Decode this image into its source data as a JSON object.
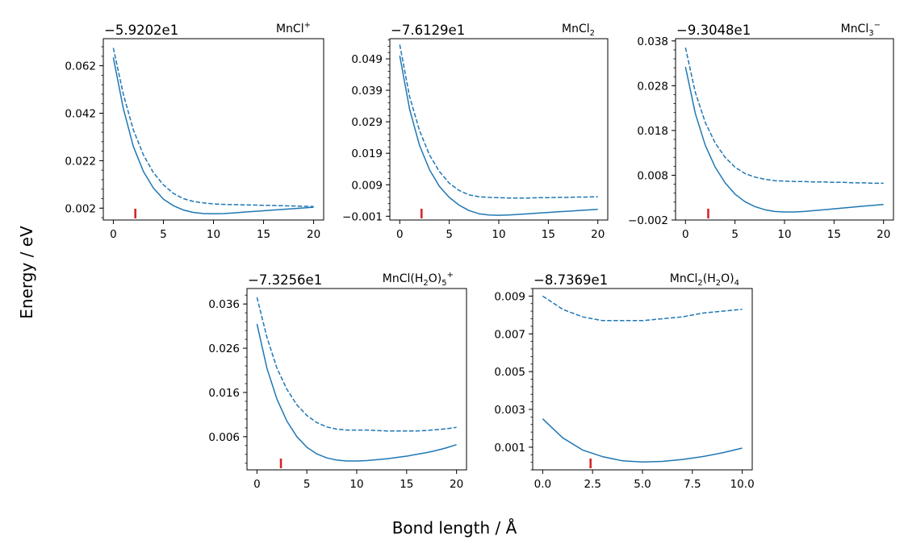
{
  "figure": {
    "ylabel": "Energy / eV",
    "xlabel": "Bond length / Å"
  },
  "colors": {
    "line": "#1f77b4",
    "marker": "#d62728"
  },
  "chart_data": [
    {
      "type": "line",
      "title_parts": [
        {
          "t": "MnCl"
        },
        {
          "t": "+",
          "sup": true
        }
      ],
      "offset": "−5.9202e1",
      "xlim": [
        -1,
        21
      ],
      "ylim": [
        -0.003,
        0.0734
      ],
      "xticks": [
        0,
        5,
        10,
        15,
        20
      ],
      "xtick_labels": [
        "0",
        "5",
        "10",
        "15",
        "20"
      ],
      "yticks": [
        0.002,
        0.022,
        0.042,
        0.062
      ],
      "ytick_labels": [
        "0.002",
        "0.022",
        "0.042",
        "0.062"
      ],
      "marker_x": 2.2,
      "series": [
        {
          "style": "solid",
          "x": [
            0,
            1,
            2,
            3,
            4,
            5,
            6,
            7,
            8,
            9,
            10,
            11,
            12,
            13,
            14,
            15,
            16,
            17,
            18,
            19,
            20
          ],
          "y": [
            0.0655,
            0.044,
            0.028,
            0.0175,
            0.0105,
            0.0058,
            0.003,
            0.0012,
            0.0002,
            -0.0003,
            -0.0004,
            -0.0003,
            0.0,
            0.0003,
            0.0006,
            0.0009,
            0.0012,
            0.0015,
            0.0018,
            0.0021,
            0.0024
          ]
        },
        {
          "style": "dashed",
          "x": [
            0,
            1,
            2,
            3,
            4,
            5,
            6,
            7,
            8,
            9,
            10,
            11,
            12,
            13,
            14,
            15,
            16,
            17,
            18,
            19,
            20
          ],
          "y": [
            0.0695,
            0.05,
            0.035,
            0.0245,
            0.017,
            0.0118,
            0.0082,
            0.006,
            0.0048,
            0.0042,
            0.0038,
            0.0036,
            0.0035,
            0.0034,
            0.0033,
            0.0032,
            0.0031,
            0.003,
            0.0029,
            0.0028,
            0.0027
          ]
        }
      ]
    },
    {
      "type": "line",
      "title_parts": [
        {
          "t": "MnCl"
        },
        {
          "t": "2",
          "sub": true
        }
      ],
      "offset": "−7.6129e1",
      "xlim": [
        -1,
        21
      ],
      "ylim": [
        -0.0022,
        0.0554
      ],
      "xticks": [
        0,
        5,
        10,
        15,
        20
      ],
      "xtick_labels": [
        "0",
        "5",
        "10",
        "15",
        "20"
      ],
      "yticks": [
        -0.001,
        0.009,
        0.019,
        0.029,
        0.039,
        0.049
      ],
      "ytick_labels": [
        "−0.001",
        "0.009",
        "0.019",
        "0.029",
        "0.039",
        "0.049"
      ],
      "marker_x": 2.2,
      "series": [
        {
          "style": "solid",
          "x": [
            0,
            1,
            2,
            3,
            4,
            5,
            6,
            7,
            8,
            9,
            10,
            11,
            12,
            13,
            14,
            15,
            16,
            17,
            18,
            19,
            20
          ],
          "y": [
            0.05,
            0.033,
            0.0215,
            0.0138,
            0.0085,
            0.005,
            0.0025,
            0.0008,
            -0.0002,
            -0.0006,
            -0.0007,
            -0.0006,
            -0.0004,
            -0.0002,
            0.0,
            0.0002,
            0.0004,
            0.0006,
            0.0008,
            0.001,
            0.0012
          ]
        },
        {
          "style": "dashed",
          "x": [
            0,
            1,
            2,
            3,
            4,
            5,
            6,
            7,
            8,
            9,
            10,
            11,
            12,
            13,
            14,
            15,
            16,
            17,
            18,
            19,
            20
          ],
          "y": [
            0.0535,
            0.037,
            0.0262,
            0.0185,
            0.0132,
            0.0095,
            0.0072,
            0.0058,
            0.0052,
            0.005,
            0.0049,
            0.0048,
            0.0048,
            0.0048,
            0.0049,
            0.0049,
            0.005,
            0.005,
            0.0051,
            0.0051,
            0.0052
          ]
        }
      ]
    },
    {
      "type": "line",
      "title_parts": [
        {
          "t": "MnCl"
        },
        {
          "t": "3",
          "sub": true
        },
        {
          "t": "−",
          "sup": true
        }
      ],
      "offset": "−9.3048e1",
      "xlim": [
        -1,
        21
      ],
      "ylim": [
        -0.002,
        0.0385
      ],
      "xticks": [
        0,
        5,
        10,
        15,
        20
      ],
      "xtick_labels": [
        "0",
        "5",
        "10",
        "15",
        "20"
      ],
      "yticks": [
        -0.002,
        0.008,
        0.018,
        0.028,
        0.038
      ],
      "ytick_labels": [
        "−0.002",
        "0.008",
        "0.018",
        "0.028",
        "0.038"
      ],
      "marker_x": 2.3,
      "series": [
        {
          "style": "solid",
          "x": [
            0,
            1,
            2,
            3,
            4,
            5,
            6,
            7,
            8,
            9,
            10,
            11,
            12,
            13,
            14,
            15,
            16,
            17,
            18,
            19,
            20
          ],
          "y": [
            0.0322,
            0.0218,
            0.0147,
            0.0098,
            0.0063,
            0.0038,
            0.0021,
            0.001,
            0.0003,
            -0.0001,
            -0.0002,
            -0.0002,
            -0.0001,
            0.0001,
            0.0003,
            0.0005,
            0.0007,
            0.0009,
            0.0011,
            0.0013,
            0.0015
          ]
        },
        {
          "style": "dashed",
          "x": [
            0,
            1,
            2,
            3,
            4,
            5,
            6,
            7,
            8,
            9,
            10,
            11,
            12,
            13,
            14,
            15,
            16,
            17,
            18,
            19,
            20
          ],
          "y": [
            0.0365,
            0.0265,
            0.0198,
            0.0152,
            0.012,
            0.0098,
            0.0084,
            0.0076,
            0.0071,
            0.0068,
            0.0067,
            0.0066,
            0.0066,
            0.0065,
            0.0065,
            0.0064,
            0.0064,
            0.0063,
            0.0063,
            0.0062,
            0.0062
          ]
        }
      ]
    },
    {
      "type": "line",
      "title_parts": [
        {
          "t": "MnCl(H"
        },
        {
          "t": "2",
          "sub": true
        },
        {
          "t": "O)"
        },
        {
          "t": "5",
          "sub": true
        },
        {
          "t": "+",
          "sup": true
        }
      ],
      "offset": "−7.3256e1",
      "xlim": [
        -1,
        21
      ],
      "ylim": [
        -0.0015,
        0.0395
      ],
      "xticks": [
        0,
        5,
        10,
        15,
        20
      ],
      "xtick_labels": [
        "0",
        "5",
        "10",
        "15",
        "20"
      ],
      "yticks": [
        0.006,
        0.016,
        0.026,
        0.036
      ],
      "ytick_labels": [
        "0.006",
        "0.016",
        "0.026",
        "0.036"
      ],
      "marker_x": 2.4,
      "series": [
        {
          "style": "solid",
          "x": [
            0,
            1,
            2,
            3,
            4,
            5,
            6,
            7,
            8,
            9,
            10,
            11,
            12,
            13,
            14,
            15,
            16,
            17,
            18,
            19,
            20
          ],
          "y": [
            0.0315,
            0.0215,
            0.0145,
            0.0095,
            0.006,
            0.0036,
            0.0021,
            0.0012,
            0.0007,
            0.0005,
            0.0005,
            0.0006,
            0.0008,
            0.001,
            0.0013,
            0.0016,
            0.002,
            0.0024,
            0.0029,
            0.0035,
            0.0042
          ]
        },
        {
          "style": "dashed",
          "x": [
            0,
            1,
            2,
            3,
            4,
            5,
            6,
            7,
            8,
            9,
            10,
            11,
            12,
            13,
            14,
            15,
            16,
            17,
            18,
            19,
            20
          ],
          "y": [
            0.0375,
            0.0285,
            0.0215,
            0.0167,
            0.0132,
            0.0108,
            0.0092,
            0.0082,
            0.0077,
            0.0075,
            0.0075,
            0.0075,
            0.0074,
            0.0073,
            0.0073,
            0.0073,
            0.0073,
            0.0074,
            0.0076,
            0.0078,
            0.0081
          ]
        }
      ]
    },
    {
      "type": "line",
      "title_parts": [
        {
          "t": "MnCl"
        },
        {
          "t": "2",
          "sub": true
        },
        {
          "t": "(H"
        },
        {
          "t": "2",
          "sub": true
        },
        {
          "t": "O)"
        },
        {
          "t": "4",
          "sub": true
        }
      ],
      "offset": "−8.7369e1",
      "xlim": [
        -0.5,
        10.5
      ],
      "ylim": [
        -0.0002,
        0.0094
      ],
      "xticks": [
        0,
        2.5,
        5,
        7.5,
        10
      ],
      "xtick_labels": [
        "0.0",
        "2.5",
        "5.0",
        "7.5",
        "10.0"
      ],
      "yticks": [
        0.001,
        0.003,
        0.005,
        0.007,
        0.009
      ],
      "ytick_labels": [
        "0.001",
        "0.003",
        "0.005",
        "0.007",
        "0.009"
      ],
      "marker_x": 2.4,
      "series": [
        {
          "style": "solid",
          "x": [
            0,
            1,
            2,
            3,
            4,
            5,
            6,
            7,
            8,
            9,
            10
          ],
          "y": [
            0.0025,
            0.0015,
            0.00085,
            0.0005,
            0.00028,
            0.00022,
            0.00025,
            0.00035,
            0.0005,
            0.0007,
            0.00095
          ]
        },
        {
          "style": "dashed",
          "x": [
            0,
            1,
            2,
            3,
            4,
            5,
            6,
            7,
            8,
            9,
            10
          ],
          "y": [
            0.009,
            0.0083,
            0.0079,
            0.0077,
            0.0077,
            0.0077,
            0.0078,
            0.0079,
            0.0081,
            0.0082,
            0.0083
          ]
        }
      ]
    }
  ]
}
